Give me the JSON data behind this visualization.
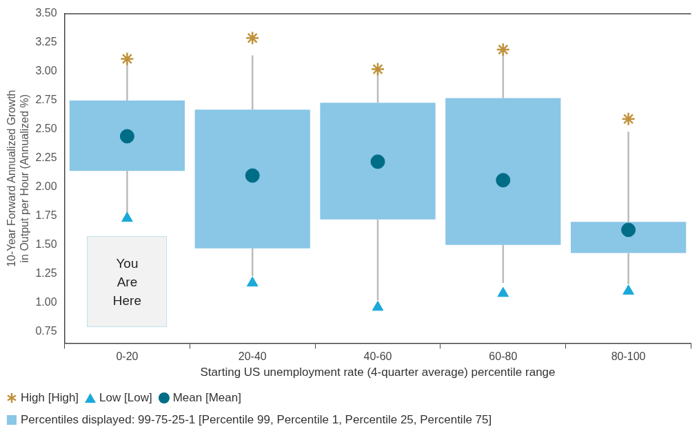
{
  "chart_data": {
    "type": "box",
    "categories": [
      "0-20",
      "20-40",
      "40-60",
      "60-80",
      "80-100"
    ],
    "xlabel": "Starting US unemployment rate (4-quarter average) percentile range",
    "ylabel": "10-Year Forward Annualized Growth in Output per Hour (Annualized %)",
    "ylim": [
      0.65,
      3.5
    ],
    "yticks": [
      0.75,
      {
        "value": 1,
        "label": "1.00"
      },
      1.25,
      {
        "value": 1.5,
        "label": "1.50"
      },
      1.75,
      {
        "value": 2,
        "label": "2.00"
      },
      2.25,
      {
        "value": 2.5,
        "label": "2.50"
      },
      2.75,
      {
        "value": 3,
        "label": "3.00"
      },
      3.25,
      {
        "value": 3.5,
        "label": "3.50"
      }
    ],
    "legend": "bottom",
    "series": [
      {
        "type": "box",
        "name": "Percentiles displayed: 99-75-25-1 [Percentile 99, Percentile 1, Percentile 25, Percentile 75]",
        "color": "#8ac6e6",
        "boxes": [
          {
            "low": 1.77,
            "q1": 2.14,
            "q3": 2.75,
            "high": 3.08
          },
          {
            "low": 1.23,
            "q1": 1.47,
            "q3": 2.67,
            "high": 3.14
          },
          {
            "low": 1.02,
            "q1": 1.72,
            "q3": 2.73,
            "high": 3.0
          },
          {
            "low": 1.17,
            "q1": 1.5,
            "q3": 2.77,
            "high": 3.17
          },
          {
            "low": 1.16,
            "q1": 1.43,
            "q3": 1.7,
            "high": 2.48
          }
        ]
      },
      {
        "type": "scatter",
        "name": "High [High]",
        "color": "#c0913a",
        "marker": "cross",
        "values": [
          3.11,
          3.29,
          3.02,
          3.19,
          2.59
        ]
      },
      {
        "type": "scatter",
        "name": "Low [Low]",
        "color": "#1aa9d9",
        "marker": "triangle",
        "values": [
          1.73,
          1.17,
          0.96,
          1.08,
          1.1
        ]
      },
      {
        "type": "scatter",
        "name": "Mean [Mean]",
        "color": "#006d87",
        "marker": "circle",
        "values": [
          2.44,
          2.1,
          2.22,
          2.06,
          1.63
        ]
      }
    ],
    "annotations": [
      "You Are Here"
    ]
  }
}
